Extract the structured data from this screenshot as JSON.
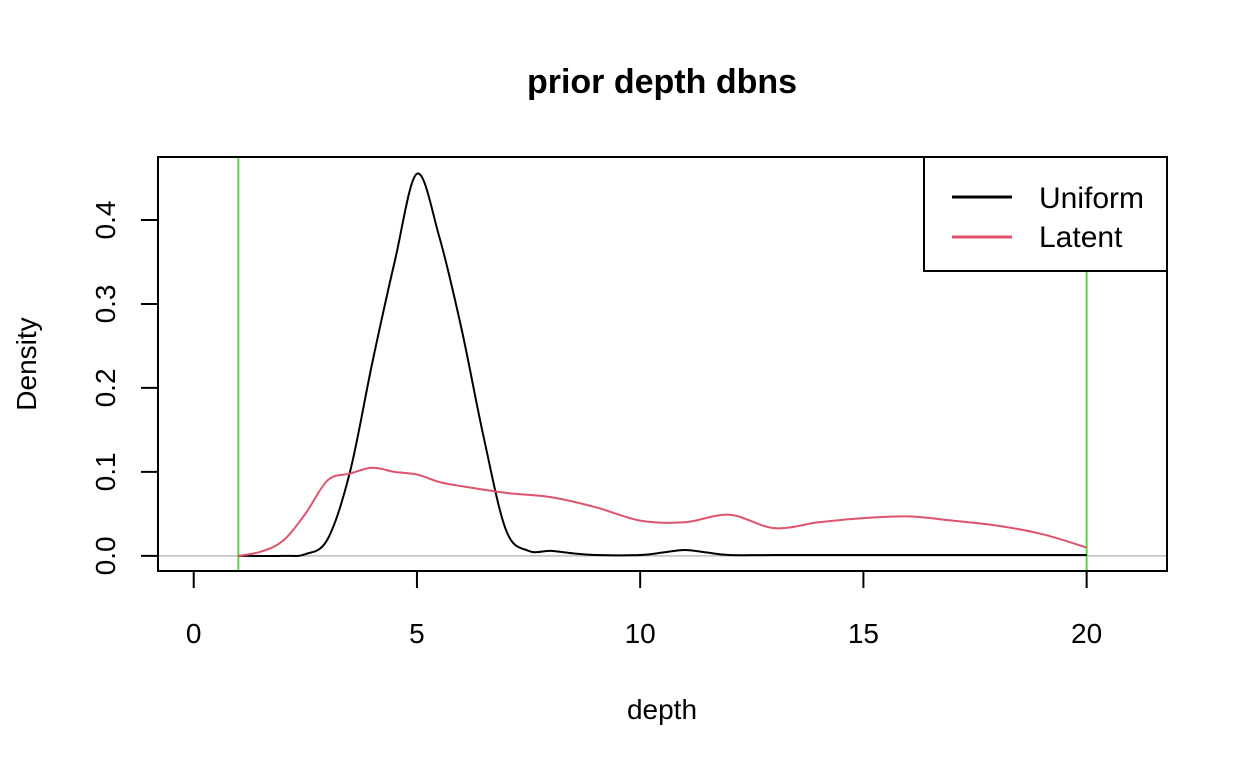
{
  "chart_data": {
    "type": "line",
    "title": "prior depth dbns",
    "xlabel": "depth",
    "ylabel": "Density",
    "xlim": [
      -0.8,
      21.8
    ],
    "ylim": [
      -0.018,
      0.475
    ],
    "xticks": [
      0,
      5,
      10,
      15,
      20
    ],
    "yticks": [
      0.0,
      0.1,
      0.2,
      0.3,
      0.4
    ],
    "ytick_labels": [
      "0.0",
      "0.1",
      "0.2",
      "0.3",
      "0.4"
    ],
    "grid": false,
    "legend_position": "top-right",
    "series": [
      {
        "name": "Uniform",
        "color": "#000000",
        "x": [
          1,
          2,
          2.5,
          3,
          3.5,
          4,
          4.5,
          5,
          5.5,
          6,
          6.5,
          7,
          7.5,
          8,
          8.5,
          9,
          10,
          10.5,
          11,
          11.5,
          12,
          13,
          15,
          17,
          20
        ],
        "y": [
          0,
          0,
          0.002,
          0.02,
          0.1,
          0.23,
          0.35,
          0.455,
          0.38,
          0.27,
          0.14,
          0.03,
          0.006,
          0.006,
          0.003,
          0.001,
          0.001,
          0.004,
          0.007,
          0.004,
          0.001,
          0.001,
          0.001,
          0.001,
          0.001
        ]
      },
      {
        "name": "Latent",
        "color": "#df536b",
        "x": [
          1,
          1.5,
          2,
          2.5,
          3,
          3.5,
          4,
          4.5,
          5,
          5.5,
          6,
          7,
          8,
          9,
          10,
          11,
          12,
          13,
          14,
          15,
          16,
          17,
          18,
          19,
          20
        ],
        "y": [
          0,
          0.005,
          0.018,
          0.05,
          0.09,
          0.098,
          0.105,
          0.1,
          0.097,
          0.088,
          0.083,
          0.075,
          0.07,
          0.058,
          0.042,
          0.04,
          0.049,
          0.033,
          0.04,
          0.045,
          0.047,
          0.042,
          0.036,
          0.026,
          0.01
        ]
      }
    ],
    "reference_lines": {
      "vertical": [
        1,
        20
      ],
      "vertical_color": "#61d04f",
      "horizontal": [
        0
      ],
      "horizontal_color": "#bebebe"
    }
  }
}
